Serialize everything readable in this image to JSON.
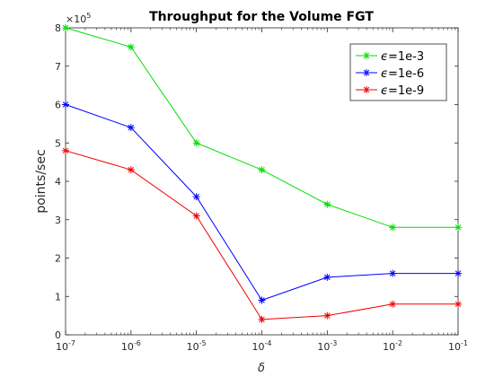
{
  "chart_data": {
    "type": "line",
    "title": "Throughput for the Volume FGT",
    "xlabel": "δ",
    "ylabel": "points/sec",
    "y_multiplier": "×10",
    "y_multiplier_exp": "5",
    "x_scale": "log",
    "x": [
      1e-07,
      1e-06,
      1e-05,
      0.0001,
      0.001,
      0.01,
      0.1
    ],
    "x_tick_labels": [
      {
        "base": "10",
        "exp": "-7"
      },
      {
        "base": "10",
        "exp": "-6"
      },
      {
        "base": "10",
        "exp": "-5"
      },
      {
        "base": "10",
        "exp": "-4"
      },
      {
        "base": "10",
        "exp": "-3"
      },
      {
        "base": "10",
        "exp": "-2"
      },
      {
        "base": "10",
        "exp": "-1"
      }
    ],
    "y_ticks": [
      0,
      1,
      2,
      3,
      4,
      5,
      6,
      7,
      8
    ],
    "y_tick_labels": [
      "0",
      "1",
      "2",
      "3",
      "4",
      "5",
      "6",
      "7",
      "8"
    ],
    "ylim": [
      0,
      800000
    ],
    "grid": false,
    "legend_position": "top-right",
    "series": [
      {
        "name": "=1e-3",
        "symbol": "ϵ",
        "color": "#00dd00",
        "values": [
          800000,
          750000,
          500000,
          430000,
          340000,
          280000,
          280000
        ]
      },
      {
        "name": "=1e-6",
        "symbol": "ϵ",
        "color": "#0000ff",
        "values": [
          600000,
          540000,
          360000,
          90000,
          150000,
          160000,
          160000
        ]
      },
      {
        "name": "=1e-9",
        "symbol": "ϵ",
        "color": "#ee0000",
        "values": [
          480000,
          430000,
          310000,
          40000,
          50000,
          80000,
          80000
        ]
      }
    ]
  }
}
